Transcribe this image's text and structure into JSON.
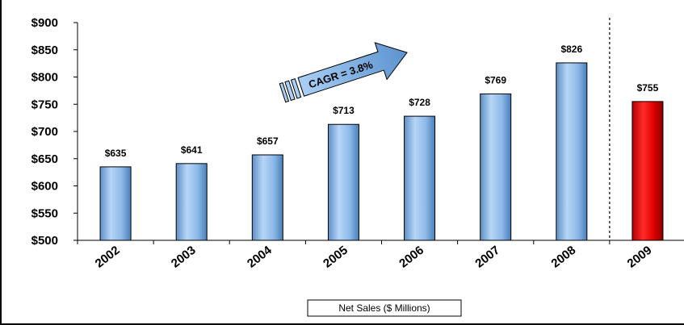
{
  "chart_data": {
    "type": "bar",
    "categories": [
      "2002",
      "2003",
      "2004",
      "2005",
      "2006",
      "2007",
      "2008",
      "2009"
    ],
    "values": [
      635,
      641,
      657,
      713,
      728,
      769,
      826,
      755
    ],
    "value_labels": [
      "$635",
      "$641",
      "$657",
      "$713",
      "$728",
      "$769",
      "$826",
      "$755"
    ],
    "title": "",
    "xlabel": "Net Sales ($ Millions)",
    "ylabel": "",
    "ylim": [
      500,
      900
    ],
    "yticks": [
      500,
      550,
      600,
      650,
      700,
      750,
      800,
      850,
      900
    ],
    "ytick_labels": [
      "$500",
      "$550",
      "$600",
      "$650",
      "$700",
      "$750",
      "$800",
      "$850",
      "$900"
    ],
    "grid": false,
    "legend": "bottom-center",
    "annotation": "CAGR = 3.8%",
    "bar_colors": [
      "#8db9e8",
      "#8db9e8",
      "#8db9e8",
      "#8db9e8",
      "#8db9e8",
      "#8db9e8",
      "#8db9e8",
      "#e00000"
    ],
    "highlight_category": "2009",
    "divider_before": "2009"
  },
  "colors": {
    "bar_blue": "#8db9e8",
    "bar_blue_dark": "#4a7fb8",
    "bar_red": "#e00000",
    "bar_red_dark": "#7a0000"
  }
}
